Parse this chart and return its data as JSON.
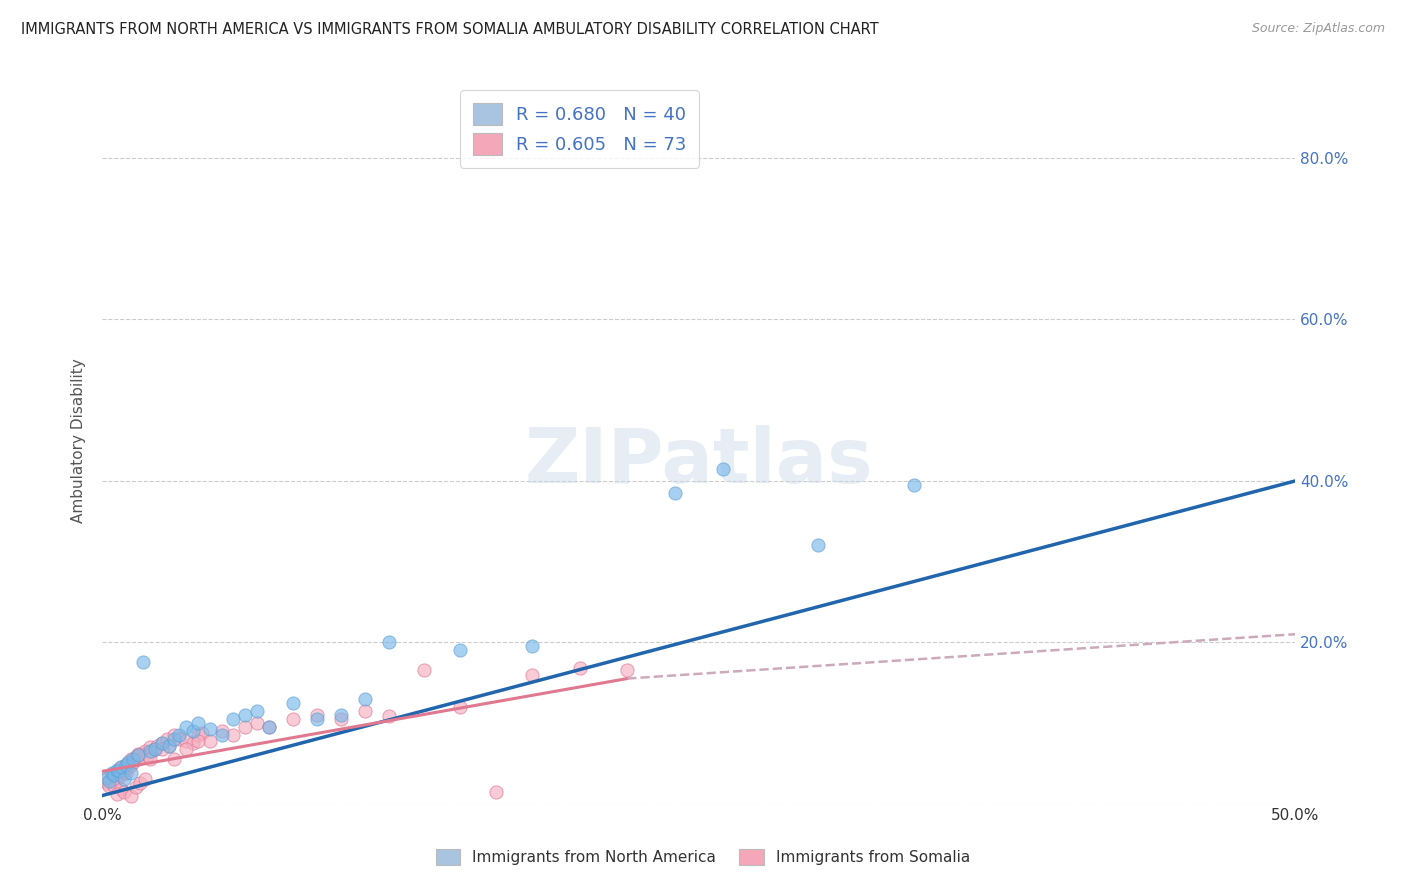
{
  "title": "IMMIGRANTS FROM NORTH AMERICA VS IMMIGRANTS FROM SOMALIA AMBULATORY DISABILITY CORRELATION CHART",
  "source": "Source: ZipAtlas.com",
  "ylabel": "Ambulatory Disability",
  "xlim": [
    0.0,
    0.5
  ],
  "ylim": [
    0.0,
    0.9
  ],
  "xticks": [
    0.0,
    0.1,
    0.2,
    0.3,
    0.4,
    0.5
  ],
  "xticklabels": [
    "0.0%",
    "",
    "",
    "",
    "",
    "50.0%"
  ],
  "yticks_right": [
    0.2,
    0.4,
    0.6,
    0.8
  ],
  "yticklabels_right": [
    "20.0%",
    "40.0%",
    "60.0%",
    "80.0%"
  ],
  "legend1_label": "R = 0.680   N = 40",
  "legend2_label": "R = 0.605   N = 73",
  "legend_color1": "#a8c4e0",
  "legend_color2": "#f4a7b9",
  "scatter1_color": "#7ab8e8",
  "scatter1_edgecolor": "#5a9fd4",
  "scatter2_color": "#f5afc0",
  "scatter2_edgecolor": "#e07090",
  "line1_color": "#2166ac",
  "line2_color": "#e07890",
  "line2_dash_color": "#ccaabb",
  "grid_color": "#cccccc",
  "background_color": "#ffffff",
  "blue_points_x": [
    0.002,
    0.003,
    0.004,
    0.005,
    0.006,
    0.007,
    0.008,
    0.009,
    0.01,
    0.011,
    0.012,
    0.013,
    0.015,
    0.017,
    0.02,
    0.022,
    0.025,
    0.028,
    0.03,
    0.032,
    0.035,
    0.038,
    0.04,
    0.045,
    0.05,
    0.055,
    0.06,
    0.065,
    0.07,
    0.08,
    0.09,
    0.1,
    0.11,
    0.12,
    0.15,
    0.18,
    0.24,
    0.26,
    0.3,
    0.34
  ],
  "blue_points_y": [
    0.032,
    0.028,
    0.038,
    0.035,
    0.042,
    0.04,
    0.045,
    0.03,
    0.048,
    0.052,
    0.038,
    0.055,
    0.06,
    0.175,
    0.065,
    0.068,
    0.075,
    0.072,
    0.08,
    0.085,
    0.095,
    0.09,
    0.1,
    0.092,
    0.085,
    0.105,
    0.11,
    0.115,
    0.095,
    0.125,
    0.105,
    0.11,
    0.13,
    0.2,
    0.19,
    0.195,
    0.385,
    0.415,
    0.32,
    0.395
  ],
  "pink_points_x": [
    0.001,
    0.002,
    0.003,
    0.004,
    0.005,
    0.005,
    0.006,
    0.006,
    0.007,
    0.007,
    0.008,
    0.008,
    0.009,
    0.009,
    0.01,
    0.01,
    0.011,
    0.011,
    0.012,
    0.012,
    0.013,
    0.014,
    0.015,
    0.015,
    0.016,
    0.017,
    0.018,
    0.019,
    0.02,
    0.021,
    0.022,
    0.023,
    0.025,
    0.027,
    0.028,
    0.03,
    0.032,
    0.035,
    0.038,
    0.04,
    0.042,
    0.045,
    0.05,
    0.055,
    0.06,
    0.065,
    0.07,
    0.08,
    0.09,
    0.1,
    0.11,
    0.12,
    0.135,
    0.15,
    0.165,
    0.18,
    0.2,
    0.22,
    0.01,
    0.015,
    0.02,
    0.025,
    0.03,
    0.04,
    0.005,
    0.008,
    0.006,
    0.009,
    0.012,
    0.014,
    0.016,
    0.018,
    0.035
  ],
  "pink_points_y": [
    0.03,
    0.025,
    0.022,
    0.028,
    0.035,
    0.038,
    0.032,
    0.04,
    0.038,
    0.042,
    0.035,
    0.045,
    0.04,
    0.042,
    0.038,
    0.048,
    0.045,
    0.05,
    0.048,
    0.055,
    0.052,
    0.058,
    0.06,
    0.055,
    0.062,
    0.058,
    0.065,
    0.06,
    0.07,
    0.065,
    0.068,
    0.072,
    0.075,
    0.08,
    0.072,
    0.085,
    0.08,
    0.078,
    0.075,
    0.085,
    0.088,
    0.078,
    0.09,
    0.085,
    0.095,
    0.1,
    0.095,
    0.105,
    0.11,
    0.105,
    0.115,
    0.108,
    0.165,
    0.12,
    0.015,
    0.16,
    0.168,
    0.165,
    0.048,
    0.062,
    0.055,
    0.068,
    0.055,
    0.078,
    0.022,
    0.018,
    0.012,
    0.015,
    0.01,
    0.02,
    0.025,
    0.03,
    0.068
  ],
  "line1_x_start": 0.0,
  "line1_x_end": 0.5,
  "line1_y_start": 0.01,
  "line1_y_end": 0.4,
  "line2_solid_x_start": 0.0,
  "line2_solid_x_end": 0.22,
  "line2_dash_x_start": 0.22,
  "line2_dash_x_end": 0.5,
  "line2_y_start": 0.04,
  "line2_y_end_solid": 0.155,
  "line2_y_end_dash": 0.21
}
